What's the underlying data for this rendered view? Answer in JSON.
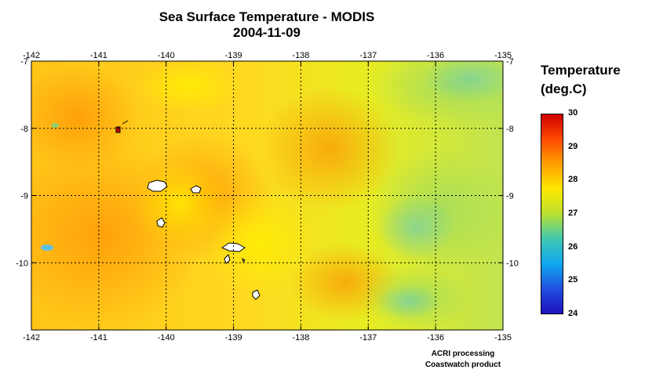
{
  "title": "Sea Surface Temperature - MODIS",
  "date": "2004-11-09",
  "legend": {
    "title_line1": "Temperature",
    "title_line2": "(deg.C)",
    "ticks": [
      "30",
      "29",
      "28",
      "27",
      "26",
      "25",
      "24"
    ],
    "colors": [
      "#d00000",
      "#ff4a00",
      "#ffa000",
      "#ffe800",
      "#b8e030",
      "#40c8b0",
      "#10a8f0",
      "#2050e0",
      "#2010c0"
    ]
  },
  "credits": {
    "line1": "ACRI processing",
    "line2": "Coastwatch product"
  },
  "chart_data": {
    "type": "heatmap",
    "x_ticks": [
      "-142",
      "-141",
      "-140",
      "-139",
      "-138",
      "-137",
      "-136",
      "-135"
    ],
    "y_ticks": [
      "-7",
      "-8",
      "-9",
      "-10"
    ],
    "xlim": [
      -142,
      -135
    ],
    "ylim": [
      -11,
      -7
    ],
    "grid": true,
    "colorbar_range": [
      24,
      30
    ],
    "islands": [
      {
        "lon": -140.1,
        "lat": -8.9
      },
      {
        "lon": -139.7,
        "lat": -8.9
      },
      {
        "lon": -140.1,
        "lat": -9.4
      },
      {
        "lon": -139.1,
        "lat": -9.8
      },
      {
        "lon": -139.2,
        "lat": -9.95
      },
      {
        "lon": -138.85,
        "lat": -10.45
      },
      {
        "lon": -140.7,
        "lat": -8.05
      }
    ]
  }
}
